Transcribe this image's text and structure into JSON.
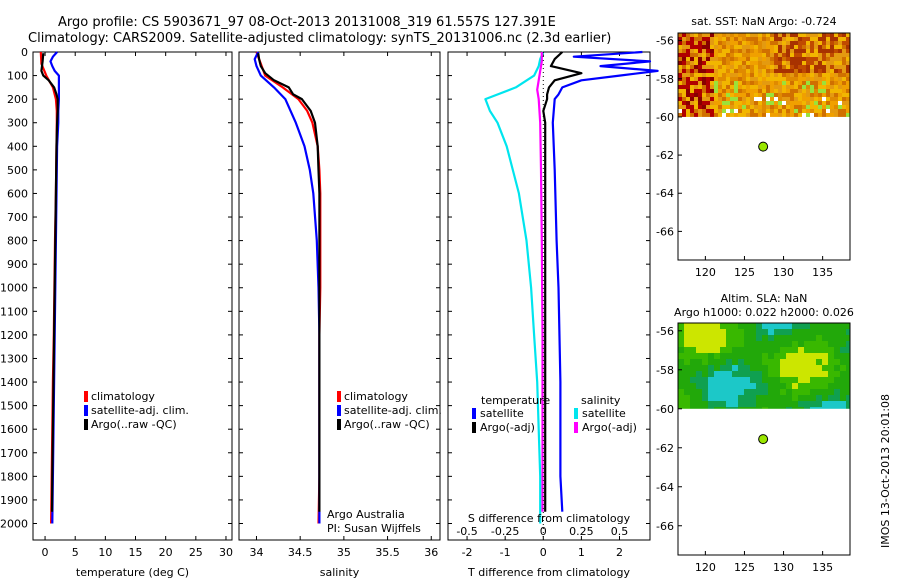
{
  "figure_title": {
    "line1": "Argo profile: CS 5903671_97 08-Oct-2013 20131008_319 61.557S 127.391E",
    "line2": "Climatology: CARS2009. Satellite-adjusted climatology: synTS_20131006.nc (2.3d earlier)"
  },
  "side_stamp": "IMOS 13-Oct-2013 20:01:08",
  "colors": {
    "climatology": "#ff0000",
    "satellite": "#0000ff",
    "argo": "#000000",
    "sat_s": "#00e5ee",
    "argo_s": "#ff00ff",
    "marker": "#99e600"
  },
  "chart_data": [
    {
      "id": "temperature",
      "type": "line",
      "xlabel": "temperature (deg C)",
      "ylabel": "",
      "xlim": [
        -2,
        31
      ],
      "ylim": [
        2070,
        0
      ],
      "xticks": [
        0,
        5,
        10,
        15,
        20,
        25,
        30
      ],
      "xtick_labels": [
        "0",
        "5",
        "10",
        "15",
        "20",
        "25",
        "30"
      ],
      "yticks": [
        0,
        100,
        200,
        300,
        400,
        500,
        600,
        700,
        800,
        900,
        1000,
        1100,
        1200,
        1300,
        1400,
        1500,
        1600,
        1700,
        1800,
        1900,
        2000
      ],
      "ytick_labels": [
        "0",
        "100",
        "200",
        "300",
        "400",
        "500",
        "600",
        "700",
        "800",
        "900",
        "1000",
        "1100",
        "1200",
        "1300",
        "1400",
        "1500",
        "1600",
        "1700",
        "1800",
        "1900",
        "2000"
      ],
      "legend": [
        "climatology",
        "satellite-adj. clim.",
        "Argo(..raw -QC)"
      ],
      "legend_location": "lower-middle",
      "series": [
        {
          "name": "climatology",
          "color": "#ff0000",
          "depth": [
            0,
            50,
            100,
            150,
            200,
            250,
            300,
            400,
            600,
            800,
            1000,
            1200,
            1400,
            1600,
            1800,
            2000
          ],
          "values": [
            -0.7,
            -0.6,
            0.2,
            1.3,
            1.8,
            1.95,
            1.95,
            1.9,
            1.8,
            1.65,
            1.55,
            1.45,
            1.3,
            1.2,
            1.1,
            1.0
          ]
        },
        {
          "name": "satellite-adj. clim.",
          "color": "#0000ff",
          "depth": [
            0,
            20,
            40,
            60,
            80,
            100,
            150,
            200,
            250,
            300,
            400,
            600,
            800,
            1000,
            1200,
            1400,
            1600,
            1800,
            2000
          ],
          "values": [
            2.0,
            1.3,
            0.9,
            1.2,
            1.6,
            2.3,
            2.3,
            2.3,
            2.2,
            2.2,
            2.0,
            1.9,
            1.8,
            1.7,
            1.6,
            1.5,
            1.4,
            1.3,
            1.2
          ]
        },
        {
          "name": "Argo(..raw -QC)",
          "color": "#000000",
          "depth": [
            5,
            20,
            40,
            60,
            80,
            100,
            120,
            150,
            180,
            200,
            250,
            300,
            400,
            600,
            800,
            1000,
            1200,
            1400,
            1600,
            1800,
            1950
          ],
          "values": [
            -0.3,
            -0.35,
            -0.4,
            -0.5,
            -0.6,
            -0.3,
            0.6,
            1.5,
            1.9,
            2.1,
            2.1,
            2.0,
            1.9,
            1.8,
            1.7,
            1.6,
            1.5,
            1.4,
            1.3,
            1.2,
            1.15
          ]
        }
      ]
    },
    {
      "id": "salinity",
      "type": "line",
      "xlabel": "salinity",
      "ylabel": "",
      "xlim": [
        33.8,
        36.1
      ],
      "ylim": [
        2070,
        0
      ],
      "xticks": [
        34,
        34.5,
        35,
        35.5,
        36
      ],
      "xtick_labels": [
        "34",
        "34.5",
        "35",
        "35.5",
        "36"
      ],
      "legend": [
        "climatology",
        "satellite-adj. clim.",
        "Argo(..raw -QC)"
      ],
      "legend_location": "lower-right",
      "annotations": [
        "Argo Australia",
        "PI: Susan Wijffels"
      ],
      "series": [
        {
          "name": "climatology",
          "color": "#ff0000",
          "depth": [
            0,
            100,
            150,
            200,
            250,
            300,
            400,
            500,
            600,
            800,
            1000,
            1200,
            1400,
            1600,
            1800,
            2000
          ],
          "values": [
            34.0,
            34.1,
            34.3,
            34.48,
            34.58,
            34.64,
            34.7,
            34.72,
            34.73,
            34.73,
            34.73,
            34.72,
            34.72,
            34.72,
            34.72,
            34.71
          ]
        },
        {
          "name": "satellite-adj. clim.",
          "color": "#0000ff",
          "depth": [
            0,
            30,
            60,
            100,
            150,
            200,
            300,
            400,
            500,
            600,
            800,
            1000,
            1200,
            1400,
            1600,
            1800,
            2000
          ],
          "values": [
            34.02,
            33.98,
            34.0,
            34.05,
            34.2,
            34.33,
            34.45,
            34.55,
            34.61,
            34.65,
            34.69,
            34.71,
            34.72,
            34.72,
            34.72,
            34.72,
            34.72
          ]
        },
        {
          "name": "Argo(..raw -QC)",
          "color": "#000000",
          "depth": [
            5,
            30,
            60,
            90,
            120,
            150,
            180,
            200,
            250,
            300,
            400,
            500,
            600,
            800,
            1000,
            1200,
            1400,
            1600,
            1800,
            1950
          ],
          "values": [
            34.02,
            34.03,
            34.05,
            34.1,
            34.2,
            34.37,
            34.42,
            34.52,
            34.62,
            34.67,
            34.7,
            34.71,
            34.72,
            34.72,
            34.72,
            34.72,
            34.72,
            34.72,
            34.72,
            34.72
          ]
        }
      ]
    },
    {
      "id": "differences",
      "type": "line",
      "xlabel": "T difference from climatology",
      "xlim": [
        -2.5,
        2.8
      ],
      "xticks": [
        -2,
        -1,
        0,
        1,
        2
      ],
      "xtick_labels": [
        "-2",
        "-1",
        "0",
        "1",
        "2"
      ],
      "top_axis_label": "S difference from climatology",
      "top_xlim": [
        -0.625,
        0.7
      ],
      "top_xticks": [
        -0.5,
        -0.25,
        0,
        0.25,
        0.5
      ],
      "top_xtick_labels": [
        "-0.5",
        "-0.25",
        "0",
        "0.25",
        "0.5"
      ],
      "ylim": [
        2070,
        0
      ],
      "legend_temperature": {
        "title": "temperature",
        "items": [
          "satellite",
          "Argo(-adj)"
        ]
      },
      "legend_salinity": {
        "title": "salinity",
        "items": [
          "satellite",
          "Argo(-adj)"
        ]
      },
      "series": [
        {
          "name": "temperature satellite",
          "color": "#0000ff",
          "depth": [
            0,
            20,
            40,
            60,
            80,
            100,
            120,
            150,
            180,
            200,
            300,
            500,
            800,
            1000,
            1400,
            1800,
            1950
          ],
          "values": [
            2.6,
            0.8,
            2.8,
            1.5,
            3.0,
            2.0,
            1.0,
            0.5,
            0.4,
            0.3,
            0.25,
            0.3,
            0.35,
            0.4,
            0.45,
            0.45,
            0.5
          ]
        },
        {
          "name": "temperature Argo(-adj)",
          "color": "#000000",
          "depth": [
            0,
            30,
            60,
            90,
            120,
            150,
            180,
            200,
            250,
            300,
            400,
            600,
            800,
            1000,
            1400,
            1800,
            1950
          ],
          "values": [
            0.5,
            0.3,
            0.2,
            1.0,
            0.3,
            0.15,
            0.1,
            0.1,
            0.0,
            0.05,
            0.05,
            0.05,
            0.05,
            0.05,
            0.05,
            0.05,
            0.05
          ]
        },
        {
          "name": "salinity satellite",
          "color": "#00e5ee",
          "depth": [
            0,
            30,
            60,
            100,
            150,
            200,
            250,
            300,
            400,
            500,
            600,
            800,
            1000,
            1200,
            1400,
            1600,
            1800,
            2000
          ],
          "values": [
            0.0,
            -0.02,
            -0.03,
            -0.06,
            -0.18,
            -0.38,
            -0.35,
            -0.3,
            -0.24,
            -0.2,
            -0.16,
            -0.11,
            -0.08,
            -0.06,
            -0.04,
            -0.03,
            -0.02,
            -0.02
          ]
        },
        {
          "name": "salinity Argo(-adj)",
          "color": "#ff00ff",
          "depth": [
            0,
            40,
            80,
            120,
            160,
            200,
            300,
            500,
            800,
            1200,
            1600,
            1950
          ],
          "values": [
            -0.01,
            -0.01,
            -0.02,
            -0.03,
            -0.04,
            -0.03,
            -0.02,
            -0.015,
            -0.01,
            -0.005,
            -0.005,
            -0.005
          ]
        }
      ]
    },
    {
      "id": "sst_map",
      "type": "heatmap",
      "title": "sat. SST: NaN Argo: -0.724",
      "xlim": [
        116.5,
        138.5
      ],
      "ylim": [
        -67.5,
        -55.6
      ],
      "xticks": [
        120,
        125,
        130,
        135
      ],
      "xtick_labels": [
        "120",
        "125",
        "130",
        "135"
      ],
      "yticks": [
        -56,
        -58,
        -60,
        -62,
        -64,
        -66
      ],
      "ytick_labels": [
        "-56",
        "-58",
        "-60",
        "-62",
        "-64",
        "-66"
      ],
      "data_extent_lat": [
        -60,
        -55.6
      ],
      "profile_location": {
        "lon": 127.391,
        "lat": -61.557
      }
    },
    {
      "id": "sla_map",
      "type": "heatmap",
      "title_line1": "Altim. SLA: NaN",
      "title_line2": "Argo h1000: 0.022 h2000: 0.026",
      "xlim": [
        116.5,
        138.5
      ],
      "ylim": [
        -67.5,
        -55.6
      ],
      "xticks": [
        120,
        125,
        130,
        135
      ],
      "xtick_labels": [
        "120",
        "125",
        "130",
        "135"
      ],
      "yticks": [
        -56,
        -58,
        -60,
        -62,
        -64,
        -66
      ],
      "ytick_labels": [
        "-56",
        "-58",
        "-60",
        "-62",
        "-64",
        "-66"
      ],
      "data_extent_lat": [
        -60,
        -55.6
      ],
      "profile_location": {
        "lon": 127.391,
        "lat": -61.557
      }
    }
  ]
}
